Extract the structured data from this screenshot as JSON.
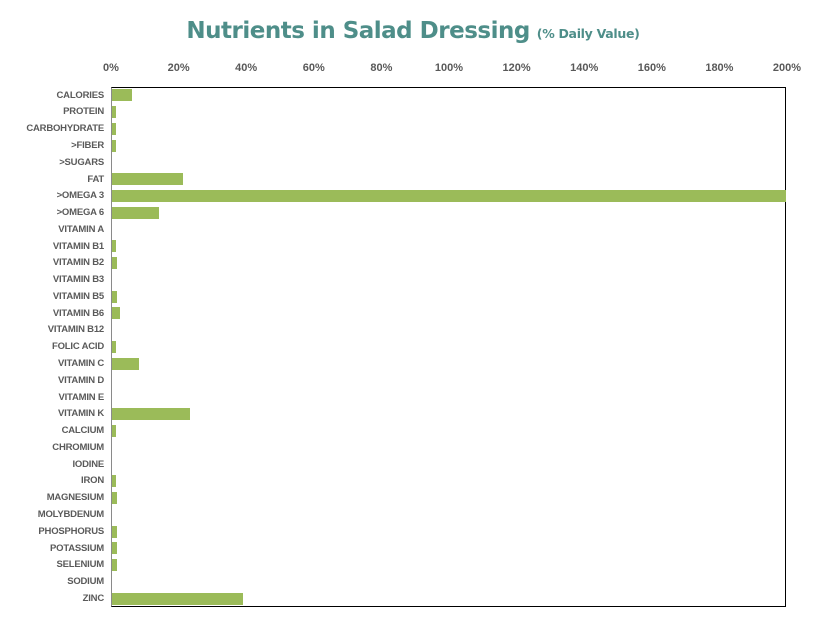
{
  "title": {
    "main": "Nutrients in Salad Dressing",
    "sub": "(% Daily Value)"
  },
  "colors": {
    "bar": "#9bbb59",
    "title_text": "#4e8e89",
    "axis_text": "#595959",
    "category_text": "#5a5a5a",
    "plot_border": "#000000",
    "y_axis_line": "#8a8a8a",
    "background": "#ffffff"
  },
  "chart_data": {
    "type": "bar",
    "orientation": "horizontal",
    "title": "Nutrients in Salad Dressing",
    "subtitle": "(% Daily Value)",
    "xlabel": "",
    "ylabel": "",
    "xlim": [
      0,
      200
    ],
    "x_tick_labels": [
      "0%",
      "20%",
      "40%",
      "60%",
      "80%",
      "100%",
      "120%",
      "140%",
      "160%",
      "180%",
      "200%"
    ],
    "grid": false,
    "legend": "none",
    "value_unit": "% Daily Value",
    "categories": [
      "CALORIES",
      "PROTEIN",
      "CARBOHYDRATE",
      ">FIBER",
      ">SUGARS",
      "FAT",
      ">OMEGA 3",
      ">OMEGA 6",
      "VITAMIN A",
      "VITAMIN B1",
      "VITAMIN B2",
      "VITAMIN B3",
      "VITAMIN B5",
      "VITAMIN B6",
      "VITAMIN B12",
      "FOLIC ACID",
      "VITAMIN C",
      "VITAMIN D",
      "VITAMIN E",
      "VITAMIN K",
      "CALCIUM",
      "CHROMIUM",
      "IODINE",
      "IRON",
      "MAGNESIUM",
      "MOLYBDENUM",
      "PHOSPHORUS",
      "POTASSIUM",
      "SELENIUM",
      "SODIUM",
      "ZINC"
    ],
    "values": [
      6,
      1.1,
      1.1,
      1.3,
      0,
      21,
      200,
      14,
      0,
      1.2,
      1.5,
      0,
      1.5,
      2.5,
      0,
      1.2,
      8,
      0,
      0,
      23,
      1.2,
      0,
      0,
      1.2,
      1.4,
      0,
      1.5,
      1.5,
      1.5,
      0,
      39
    ]
  }
}
